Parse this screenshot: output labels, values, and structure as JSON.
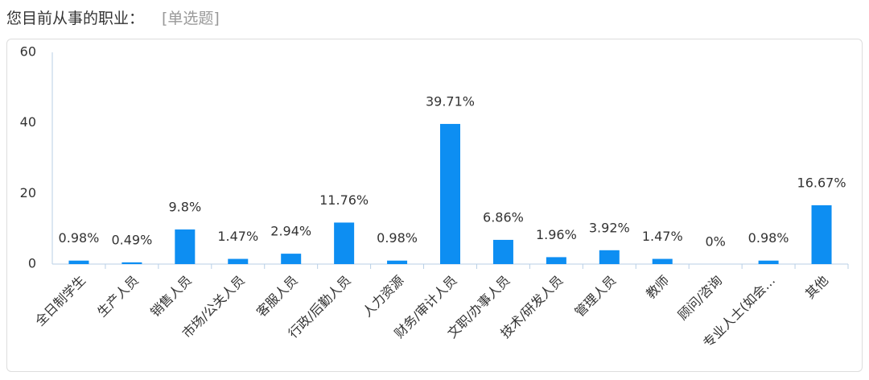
{
  "header": {
    "question": "您目前从事的职业：",
    "tag": "[单选题]"
  },
  "chart_data": {
    "type": "bar",
    "categories": [
      "全日制学生",
      "生产人员",
      "销售人员",
      "市场/公关人员",
      "客服人员",
      "行政/后勤人员",
      "人力资源",
      "财务/审计人员",
      "文职/办事人员",
      "技术/研发人员",
      "管理人员",
      "教师",
      "顾问/咨询",
      "专业人士(如会…",
      "其他"
    ],
    "values": [
      0.98,
      0.49,
      9.8,
      1.47,
      2.94,
      11.76,
      0.98,
      39.71,
      6.86,
      1.96,
      3.92,
      1.47,
      0,
      0.98,
      16.67
    ],
    "value_labels": [
      "0.98%",
      "0.49%",
      "9.8%",
      "1.47%",
      "2.94%",
      "11.76%",
      "0.98%",
      "39.71%",
      "6.86%",
      "1.96%",
      "3.92%",
      "1.47%",
      "0%",
      "0.98%",
      "16.67%"
    ],
    "color": "#0d8ef2",
    "ylim": [
      0,
      60
    ],
    "yticks": [
      0,
      20,
      40,
      60
    ],
    "grid": false
  }
}
